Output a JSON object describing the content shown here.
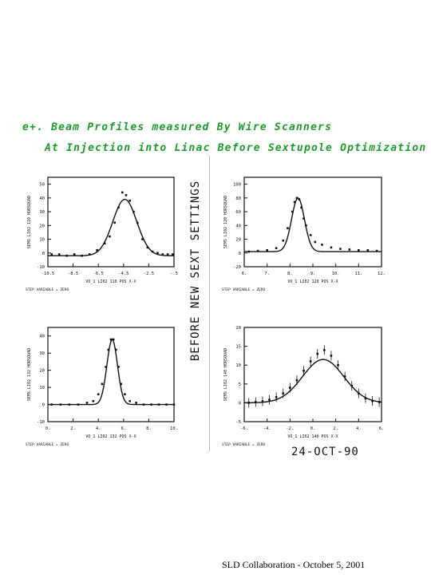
{
  "title_line1": "e+. Beam Profiles measured By Wire Scanners",
  "title_line2": "At Injection into Linac Before Sextupole Optimization",
  "vertical_note": "BEFORE NEW SEXT SETTINGS",
  "date_note": "24-OCT-90",
  "footer": "SLD Collaboration - October 5, 2001",
  "colors": {
    "handwriting_green": "#1f9a2e",
    "ink": "#111111"
  },
  "chart_data": [
    {
      "type": "scatter",
      "title": "",
      "xlabel": "VO_1 LI02 110 POS X-X",
      "ylabel": "SEMS LI02 110 HORSQUAD",
      "step_label": "STEP VARIABLE = ZERO",
      "x_ticks": [
        "-10.5",
        "-8.5",
        "-6.5",
        "-4.5",
        "-2.5",
        "-.5"
      ],
      "y_ticks": [
        "-10",
        "0",
        "10",
        "20",
        "30",
        "40",
        "50"
      ],
      "ylim": [
        -10,
        55
      ],
      "fit": {
        "type": "gaussian",
        "mean": -4.4,
        "sigma": 0.95,
        "amplitude": 41,
        "baseline": -2
      },
      "x": [
        -10.2,
        -9.6,
        -9.0,
        -8.4,
        -7.8,
        -7.2,
        -6.6,
        -6.0,
        -5.6,
        -5.2,
        -4.9,
        -4.6,
        -4.3,
        -4.0,
        -3.7,
        -3.4,
        -3.0,
        -2.6,
        -2.2,
        -1.8,
        -1.4,
        -1.0,
        -0.6
      ],
      "y": [
        -1,
        -1,
        -2,
        -1,
        -2,
        -1,
        2,
        7,
        12,
        22,
        33,
        44,
        42,
        38,
        30,
        22,
        10,
        4,
        1,
        0,
        -1,
        -1,
        -1
      ]
    },
    {
      "type": "scatter",
      "title": "",
      "xlabel": "VO_1 LI02 120 POS X-X",
      "ylabel": "SEMS LI02 120 HORSQUAD",
      "step_label": "STEP VARIABLE = ZERO",
      "x_ticks": [
        "6.",
        "7.",
        "8.",
        "9.",
        "10.",
        "11.",
        "12."
      ],
      "y_ticks": [
        "-20",
        "0",
        "20",
        "40",
        "60",
        "80",
        "100"
      ],
      "ylim": [
        -20,
        110
      ],
      "fit": {
        "type": "gaussian",
        "mean": 8.35,
        "sigma": 0.28,
        "amplitude": 78,
        "baseline": 2
      },
      "x": [
        6.2,
        6.6,
        7.0,
        7.4,
        7.7,
        7.9,
        8.1,
        8.2,
        8.3,
        8.4,
        8.5,
        8.6,
        8.7,
        8.9,
        9.1,
        9.4,
        9.8,
        10.2,
        10.6,
        11.0,
        11.4,
        11.8
      ],
      "y": [
        2,
        3,
        4,
        7,
        18,
        36,
        60,
        74,
        80,
        78,
        66,
        50,
        40,
        26,
        16,
        12,
        8,
        6,
        5,
        4,
        4,
        3
      ]
    },
    {
      "type": "scatter",
      "title": "",
      "xlabel": "VO_1 LI02 132 POS X-X",
      "ylabel": "SEMS LI02 132 HORSQUAD",
      "step_label": "STEP VARIABLE = ZERO",
      "x_ticks": [
        "0.",
        "2.",
        "4.",
        "6.",
        "8.",
        "10."
      ],
      "y_ticks": [
        "-10",
        "0",
        "10",
        "20",
        "30",
        "40"
      ],
      "ylim": [
        -10,
        45
      ],
      "fit": {
        "type": "gaussian",
        "mean": 5.1,
        "sigma": 0.42,
        "amplitude": 38,
        "baseline": 0
      },
      "x": [
        0.3,
        1.0,
        1.7,
        2.4,
        3.1,
        3.6,
        4.0,
        4.3,
        4.6,
        4.8,
        5.0,
        5.2,
        5.4,
        5.6,
        5.8,
        6.1,
        6.5,
        7.0,
        7.6,
        8.2,
        8.8,
        9.4,
        10.0
      ],
      "y": [
        0,
        0,
        0,
        0,
        1,
        2,
        6,
        12,
        22,
        32,
        38,
        38,
        32,
        22,
        12,
        6,
        2,
        1,
        0,
        0,
        0,
        0,
        0
      ]
    },
    {
      "type": "scatter",
      "title": "",
      "xlabel": "VO_1 LI02 140 POS X-X",
      "ylabel": "SEMS LI02 140 HORSQUAD",
      "step_label": "STEP VARIABLE = ZERO",
      "x_ticks": [
        "-6.",
        "-4.",
        "-2.",
        "0.",
        "2.",
        "4.",
        "6."
      ],
      "y_ticks": [
        "-5",
        "0",
        "5",
        "10",
        "15",
        "20"
      ],
      "ylim": [
        -5,
        20
      ],
      "fit": {
        "type": "gaussian",
        "mean": 0.9,
        "sigma": 1.8,
        "amplitude": 11.5,
        "baseline": 0
      },
      "x": [
        -5.6,
        -5.0,
        -4.4,
        -3.8,
        -3.2,
        -2.6,
        -2.0,
        -1.4,
        -0.8,
        -0.2,
        0.4,
        1.0,
        1.6,
        2.2,
        2.8,
        3.4,
        4.0,
        4.6,
        5.2,
        5.8
      ],
      "y": [
        0,
        0.2,
        0.4,
        0.8,
        1.5,
        2.5,
        4,
        6,
        8.5,
        11,
        13,
        14,
        12.5,
        10,
        7,
        4.5,
        2.5,
        1.2,
        0.5,
        0.2
      ]
    }
  ]
}
